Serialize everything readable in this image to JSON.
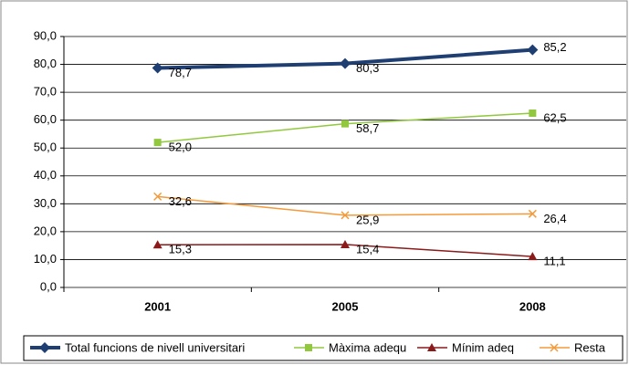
{
  "chart_data": {
    "type": "line",
    "categories": [
      "2001",
      "2005",
      "2008"
    ],
    "ylim": [
      0,
      90
    ],
    "yticks": [
      {
        "value": 0,
        "label": "0,0"
      },
      {
        "value": 10,
        "label": "10,0"
      },
      {
        "value": 20,
        "label": "20,0"
      },
      {
        "value": 30,
        "label": "30,0"
      },
      {
        "value": 40,
        "label": "40,0"
      },
      {
        "value": 50,
        "label": "50,0"
      },
      {
        "value": 60,
        "label": "60,0"
      },
      {
        "value": 70,
        "label": "70,0"
      },
      {
        "value": 80,
        "label": "80,0"
      },
      {
        "value": 90,
        "label": "90,0"
      }
    ],
    "grid": true,
    "legend": "bottom",
    "series": [
      {
        "name": "Total funcions de nivell universitari",
        "color": "#1f3f73",
        "marker": "diamond",
        "line_width": 4,
        "values": [
          78.7,
          80.3,
          85.2
        ],
        "value_labels": [
          "78,7",
          "80,3",
          "85,2"
        ]
      },
      {
        "name": "Màxima adequ",
        "color": "#92c83e",
        "marker": "square",
        "line_width": 1.5,
        "values": [
          52.0,
          58.7,
          62.5
        ],
        "value_labels": [
          "52,0",
          "58,7",
          "62,5"
        ]
      },
      {
        "name": "Mínim adeq",
        "color": "#8b1a1a",
        "marker": "triangle",
        "line_width": 1.5,
        "values": [
          15.3,
          15.4,
          11.1
        ],
        "value_labels": [
          "15,3",
          "15,4",
          "11,1"
        ]
      },
      {
        "name": "Resta",
        "color": "#f39a3a",
        "marker": "x",
        "line_width": 1.5,
        "values": [
          32.6,
          25.9,
          26.4
        ],
        "value_labels": [
          "32,6",
          "25,9",
          "26,4"
        ]
      }
    ]
  }
}
